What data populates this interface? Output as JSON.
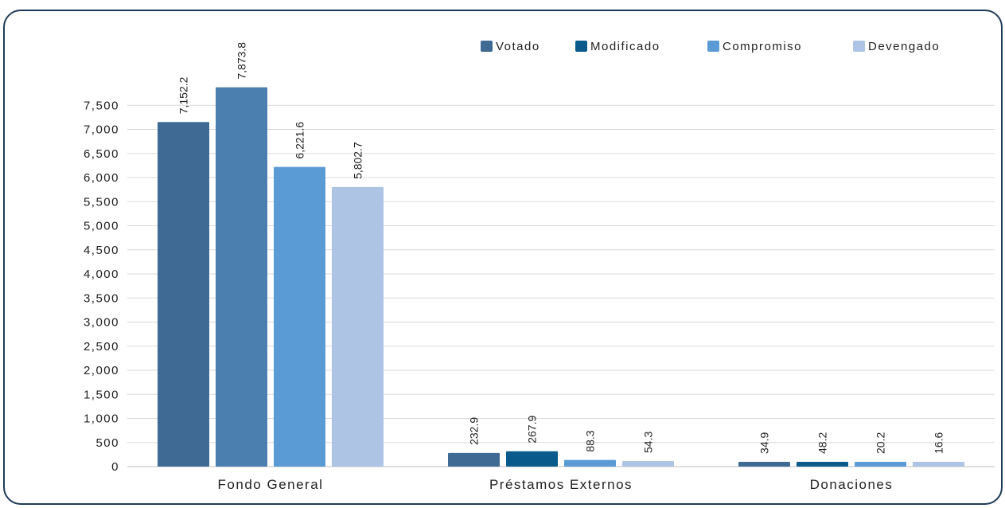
{
  "chart_data": {
    "type": "bar",
    "categories": [
      "Fondo General",
      "Préstamos Externos",
      "Donaciones"
    ],
    "series": [
      {
        "name": "Votado",
        "values": [
          7152.2,
          232.9,
          34.9
        ],
        "labels": [
          "7,152.2",
          "232.9",
          "34.9"
        ],
        "color": "#3e6a94"
      },
      {
        "name": "Modificado",
        "values": [
          7873.8,
          267.9,
          48.2
        ],
        "labels": [
          "7,873.8",
          "267.9",
          "48.2"
        ],
        "color": "#0b5a8c"
      },
      {
        "name": "Compromiso",
        "values": [
          6221.6,
          88.3,
          20.2
        ],
        "labels": [
          "6,221.6",
          "88.3",
          "20.2"
        ],
        "color": "#5b9bd5"
      },
      {
        "name": "Devengado",
        "values": [
          5802.7,
          54.3,
          16.6
        ],
        "labels": [
          "5,802.7",
          "54.3",
          "16.6"
        ],
        "color": "#adc4e4"
      }
    ],
    "fondo_general_colors": [
      "#3e6a94",
      "#4a7fb0",
      "#5b9bd5",
      "#adc4e4"
    ],
    "ylim": [
      0,
      7500
    ],
    "yticks": [
      0,
      500,
      1000,
      1500,
      2000,
      2500,
      3000,
      3500,
      4000,
      4500,
      5000,
      5500,
      6000,
      6500,
      7000,
      7500
    ],
    "ytick_labels": [
      "0",
      "500",
      "1,000",
      "1,500",
      "2,000",
      "2,500",
      "3,000",
      "3,500",
      "4,000",
      "4,500",
      "5,000",
      "5,500",
      "6,000",
      "6,500",
      "7,000",
      "7,500"
    ],
    "grid": true,
    "legend_position": "top-right",
    "title": "",
    "xlabel": "",
    "ylabel": ""
  }
}
